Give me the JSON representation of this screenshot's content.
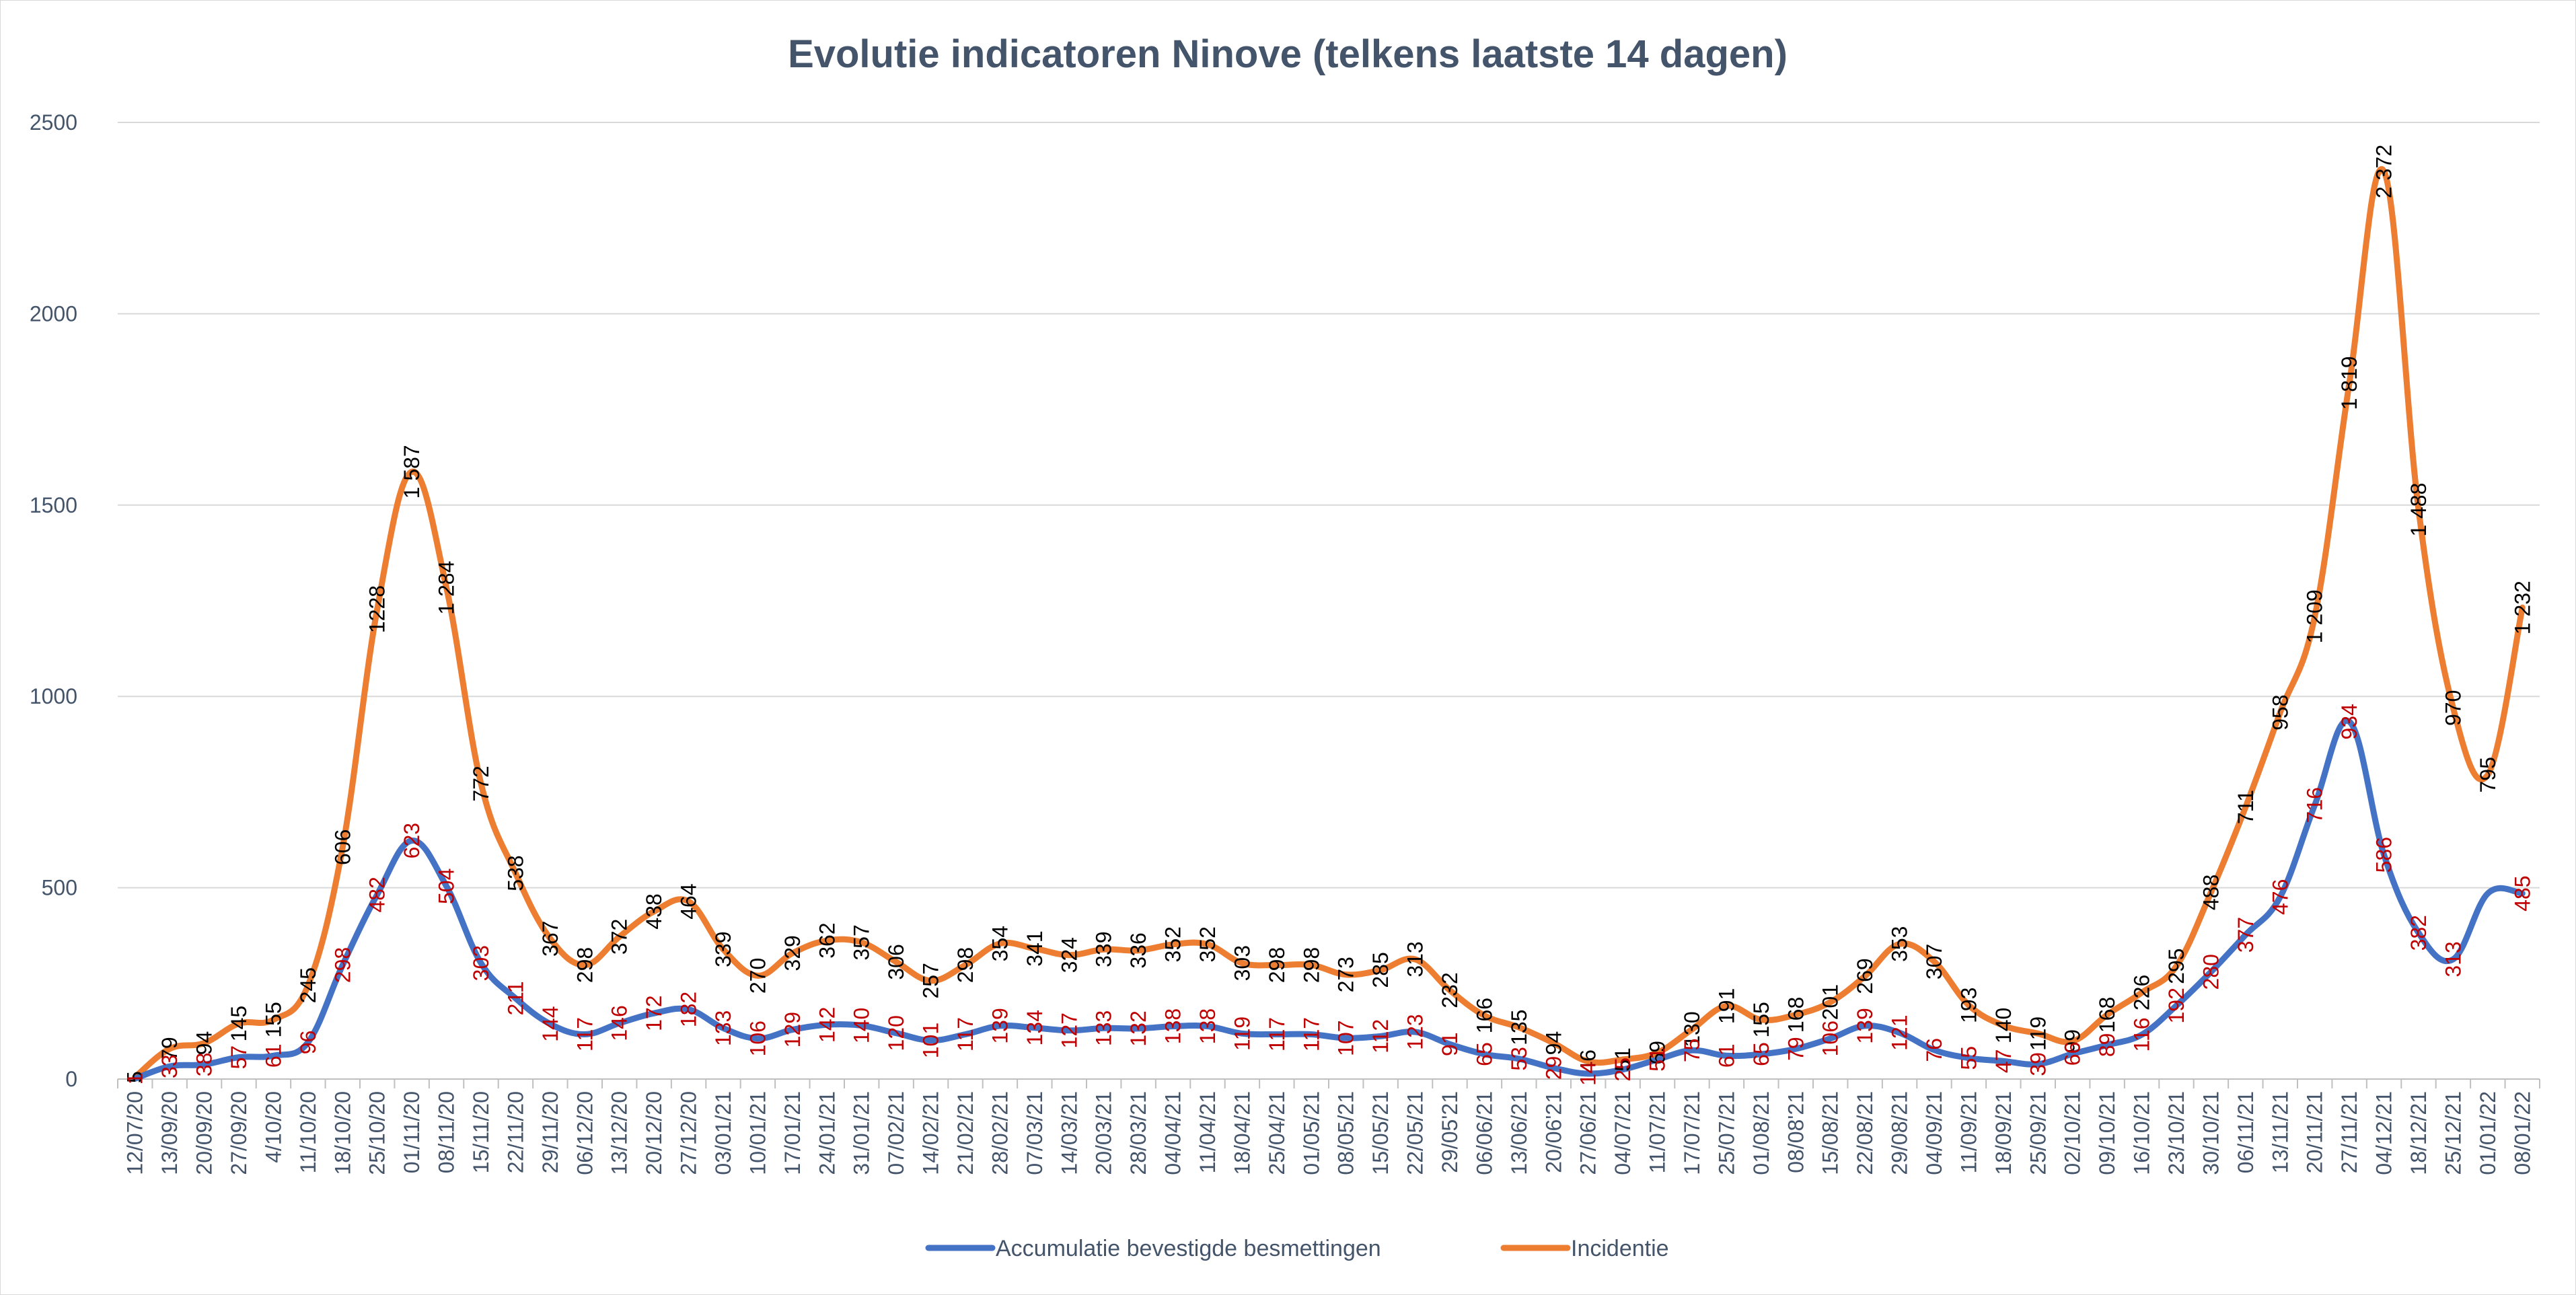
{
  "chart_data": {
    "type": "line",
    "title": "Evolutie indicatoren Ninove (telkens laatste 14 dagen)",
    "xlabel": "",
    "ylabel": "",
    "ylim": [
      0,
      2500
    ],
    "yticks": [
      0,
      500,
      1000,
      1500,
      2000,
      2500
    ],
    "ytick_labels": [
      "0",
      "500",
      "1000",
      "1500",
      "2000",
      "2500"
    ],
    "grid": true,
    "legend_position": "bottom-center",
    "categories": [
      "12/07/20",
      "13/09/20",
      "20/09/20",
      "27/09/20",
      "4/10/20",
      "11/10/20",
      "18/10/20",
      "25/10/20",
      "01/11/20",
      "08/11/20",
      "15/11/20",
      "22/11/20",
      "29/11/20",
      "06/12/20",
      "13/12/20",
      "20/12/20",
      "27/12/20",
      "03/01/21",
      "10/01/21",
      "17/01/21",
      "24/01/21",
      "31/01/21",
      "07/02/21",
      "14/02/21",
      "21/02/21",
      "28/02/21",
      "07/03/21",
      "14/03/21",
      "20/03/21",
      "28/03/21",
      "04/04/21",
      "11/04/21",
      "18/04/21",
      "25/04/21",
      "01/05/21",
      "08/05/21",
      "15/05/21",
      "22/05/21",
      "29/05'21",
      "06/06/21",
      "13/06/21",
      "20/06'21",
      "27/06/21",
      "04/07/21",
      "11/07/21",
      "17/07/21",
      "25/07/21",
      "01/08/21",
      "08/08'21",
      "15/08/21",
      "22/08/21",
      "29/08/21",
      "04/09/21",
      "11/09/21",
      "18/09/21",
      "25/09/21",
      "02/10/21",
      "09/10/21",
      "16/10/21",
      "23/10/21",
      "30/10/21",
      "06/11/21",
      "13/11/21",
      "20/11/21",
      "27/11/21",
      "04/12/21",
      "18/12/21",
      "25/12/21",
      "01/01/22",
      "08/01/22"
    ],
    "series": [
      {
        "name": "Accumulatie bevestigde besmettingen",
        "color": "#4472c4",
        "label_color": "#c00000",
        "values": [
          1,
          33,
          38,
          57,
          61,
          96,
          298,
          482,
          623,
          504,
          303,
          211,
          144,
          117,
          146,
          172,
          182,
          133,
          106,
          129,
          142,
          140,
          120,
          101,
          117,
          139,
          134,
          127,
          133,
          132,
          138,
          138,
          119,
          117,
          117,
          107,
          112,
          123,
          91,
          65,
          53,
          29,
          14,
          25,
          51,
          75,
          61,
          65,
          79,
          106,
          139,
          121,
          76,
          55,
          47,
          39,
          66,
          89,
          116,
          192,
          280,
          377,
          476,
          716,
          934,
          586,
          382,
          313,
          485,
          485
        ],
        "labels": [
          "1",
          "33",
          "38",
          "57",
          "61",
          "96",
          "298",
          "482",
          "623",
          "504",
          "303",
          "211",
          "144",
          "117",
          "146",
          "172",
          "182",
          "133",
          "106",
          "129",
          "142",
          "140",
          "120",
          "101",
          "117",
          "139",
          "134",
          "127",
          "133",
          "132",
          "138",
          "138",
          "119",
          "117",
          "117",
          "107",
          "112",
          "123",
          "91",
          "65",
          "53",
          "29",
          "14",
          "25",
          "51",
          "75",
          "61",
          "65",
          "79",
          "106",
          "139",
          "121",
          "76",
          "55",
          "47",
          "39",
          "66",
          "89",
          "116",
          "192",
          "280",
          "377",
          "476",
          "716",
          "934",
          "586",
          "382",
          "313",
          "",
          "485"
        ]
      },
      {
        "name": "Incidentie",
        "color": "#ed7d31",
        "label_color": "#000000",
        "values": [
          5,
          79,
          94,
          145,
          155,
          245,
          606,
          1228,
          1587,
          1284,
          772,
          538,
          367,
          298,
          372,
          438,
          464,
          339,
          270,
          329,
          362,
          357,
          306,
          257,
          298,
          354,
          341,
          324,
          339,
          336,
          352,
          352,
          303,
          298,
          298,
          273,
          285,
          313,
          232,
          166,
          135,
          94,
          46,
          51,
          69,
          130,
          191,
          155,
          168,
          201,
          269,
          353,
          307,
          193,
          140,
          119,
          99,
          168,
          226,
          295,
          488,
          711,
          958,
          1209,
          1819,
          2372,
          1488,
          970,
          795,
          1232
        ],
        "labels": [
          "5",
          "79",
          "94",
          "145",
          "155",
          "245",
          "606",
          "1228",
          "1 587",
          "1 284",
          "772",
          "538",
          "367",
          "298",
          "372",
          "438",
          "464",
          "339",
          "270",
          "329",
          "362",
          "357",
          "306",
          "257",
          "298",
          "354",
          "341",
          "324",
          "339",
          "336",
          "352",
          "352",
          "303",
          "298",
          "298",
          "273",
          "285",
          "313",
          "232",
          "166",
          "135",
          "94",
          "46",
          "51",
          "69",
          "130",
          "191",
          "155",
          "168",
          "201",
          "269",
          "353",
          "307",
          "193",
          "140",
          "119",
          "99",
          "168",
          "226",
          "295",
          "488",
          "711",
          "958",
          "1 209",
          "1 819",
          "2 372",
          "1 488",
          "970",
          "795",
          "1 232"
        ]
      }
    ]
  }
}
